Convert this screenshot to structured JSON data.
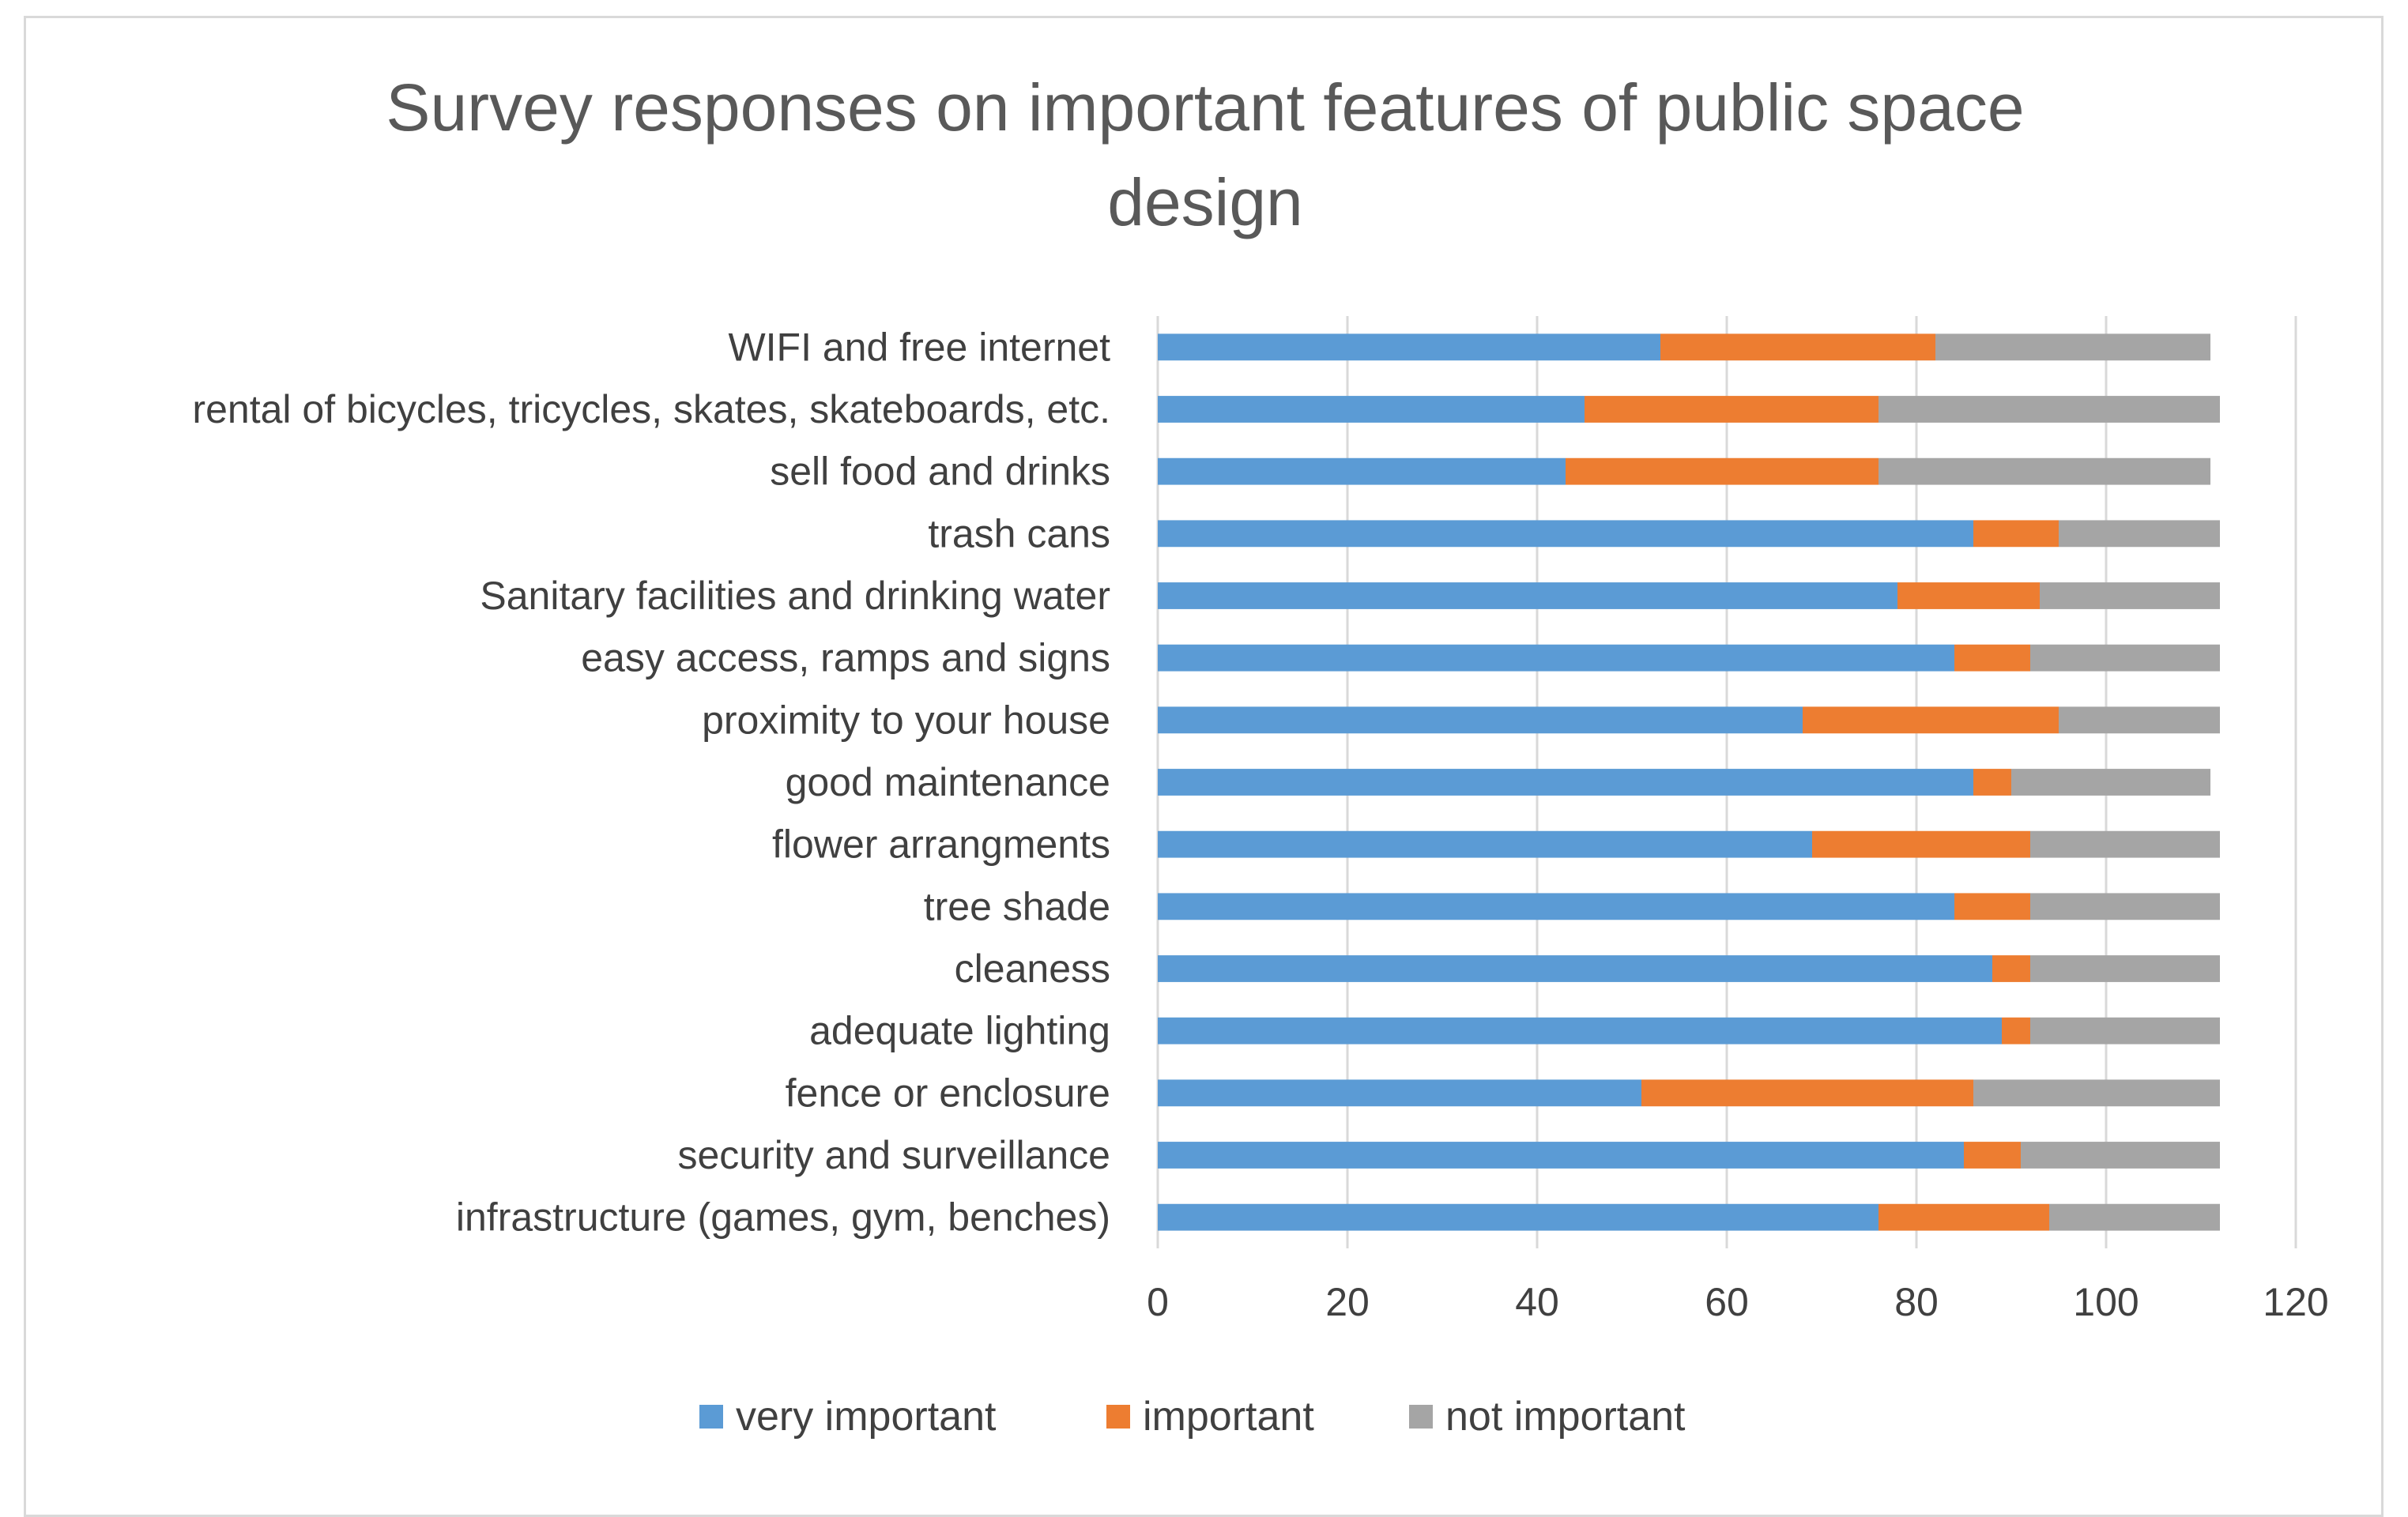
{
  "chart_data": {
    "type": "bar",
    "orientation": "horizontal",
    "stacked": true,
    "title_lines": [
      "Survey responses on important features of public space",
      "design"
    ],
    "categories": [
      "WIFI and free internet",
      "rental of bicycles, tricycles, skates, skateboards, etc.",
      "sell food and drinks",
      "trash cans",
      "Sanitary facilities and drinking water",
      "easy access, ramps and signs",
      "proximity to your house",
      "good maintenance",
      "flower arrangments",
      "tree shade",
      "cleaness",
      "adequate lighting",
      "fence or enclosure",
      "security and surveillance",
      "infrastructure (games, gym, benches)"
    ],
    "series": [
      {
        "name": "very important",
        "color": "#5b9bd5",
        "values": [
          53,
          45,
          43,
          86,
          78,
          84,
          68,
          86,
          69,
          84,
          88,
          89,
          51,
          85,
          76
        ]
      },
      {
        "name": "important",
        "color": "#ed7d31",
        "values": [
          29,
          31,
          33,
          9,
          15,
          8,
          27,
          4,
          23,
          8,
          4,
          3,
          35,
          6,
          18
        ]
      },
      {
        "name": "not important",
        "color": "#a5a5a5",
        "values": [
          29,
          36,
          35,
          17,
          19,
          20,
          17,
          21,
          20,
          20,
          20,
          20,
          26,
          21,
          18
        ]
      }
    ],
    "xlim": [
      0,
      120
    ],
    "xticks": [
      0,
      20,
      40,
      60,
      80,
      100,
      120
    ],
    "xlabel": "",
    "ylabel": "",
    "grid": true,
    "legend_position": "bottom"
  }
}
